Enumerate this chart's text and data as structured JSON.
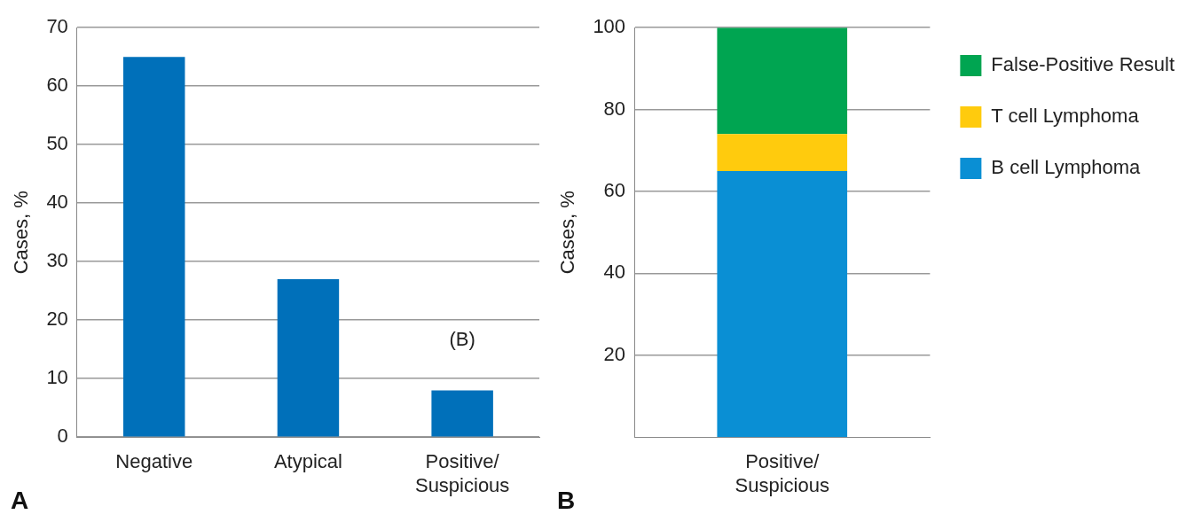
{
  "chart_data": [
    {
      "type": "bar",
      "categories": [
        "Negative",
        "Atypical",
        "Positive/Suspicious"
      ],
      "values": [
        65,
        27,
        8
      ],
      "color": "#0070ba",
      "ylabel": "Cases, %",
      "ylim": [
        0,
        70
      ],
      "yticks": [
        0,
        10,
        20,
        30,
        40,
        50,
        60,
        70
      ],
      "grid": "y",
      "legend": false,
      "annotations": [
        "(B)",
        "A"
      ]
    },
    {
      "type": "bar",
      "categories": [
        "Positive/Suspicious"
      ],
      "stacked": true,
      "series": [
        {
          "name": "B cell Lymphoma",
          "color": "#0a8fd4",
          "values": [
            65
          ]
        },
        {
          "name": "T cell Lymphoma",
          "color": "#ffcb0d",
          "values": [
            9
          ]
        },
        {
          "name": "False-Positive Result",
          "color": "#00a551",
          "values": [
            26
          ]
        }
      ],
      "ylabel": "Cases, %",
      "ylim": [
        0,
        100
      ],
      "yticks": [
        20,
        40,
        60,
        80,
        100
      ],
      "grid": "y",
      "legend": "top right",
      "annotations": [
        "B"
      ]
    }
  ]
}
